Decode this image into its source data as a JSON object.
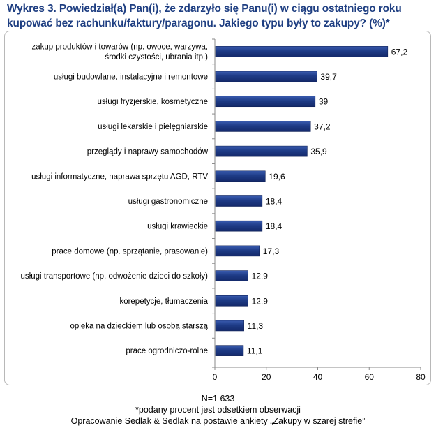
{
  "title": "Wykres 3. Powiedział(a) Pan(i), że zdarzyło się Panu(i) w ciągu ostatniego roku\nkupować bez rachunku/faktury/paragonu.  Jakiego typu były to zakupy? (%)*",
  "footer": {
    "sample": "N=1 633",
    "note": "*podany procent jest odsetkiem obserwacji",
    "source": "Opracowanie Sedlak & Sedlak na postawie ankiety „Zakupy w szarej strefie”"
  },
  "chart_data": {
    "type": "bar",
    "orientation": "horizontal",
    "categories": [
      [
        "zakup produktów i towarów (np. owoce, warzywa,",
        "środki czystości, ubrania itp.)"
      ],
      [
        "usługi budowlane, instalacyjne i remontowe"
      ],
      [
        "usługi fryzjerskie, kosmetyczne"
      ],
      [
        "usługi lekarskie i pielęgniarskie"
      ],
      [
        "przeglądy i naprawy samochodów"
      ],
      [
        "usługi informatyczne, naprawa sprzętu AGD, RTV"
      ],
      [
        "usługi gastronomiczne"
      ],
      [
        "usługi krawieckie"
      ],
      [
        "prace domowe (np. sprzątanie, prasowanie)"
      ],
      [
        "usługi transportowe (np. odwożenie dzieci do szkoły)"
      ],
      [
        "korepetycje, tłumaczenia"
      ],
      [
        "opieka na dzieckiem lub osobą starszą"
      ],
      [
        "prace ogrodniczo-rolne"
      ]
    ],
    "values": [
      67.2,
      39.7,
      39,
      37.2,
      35.9,
      19.6,
      18.4,
      18.4,
      17.3,
      12.9,
      12.9,
      11.3,
      11.1
    ],
    "value_labels": [
      "67,2",
      "39,7",
      "39",
      "37,2",
      "35,9",
      "19,6",
      "18,4",
      "18,4",
      "17,3",
      "12,9",
      "12,9",
      "11,3",
      "11,1"
    ],
    "xlim": [
      0,
      80
    ],
    "xticks": [
      0,
      20,
      40,
      60,
      80
    ],
    "grid": false,
    "bar_color": "#1e3b86"
  }
}
